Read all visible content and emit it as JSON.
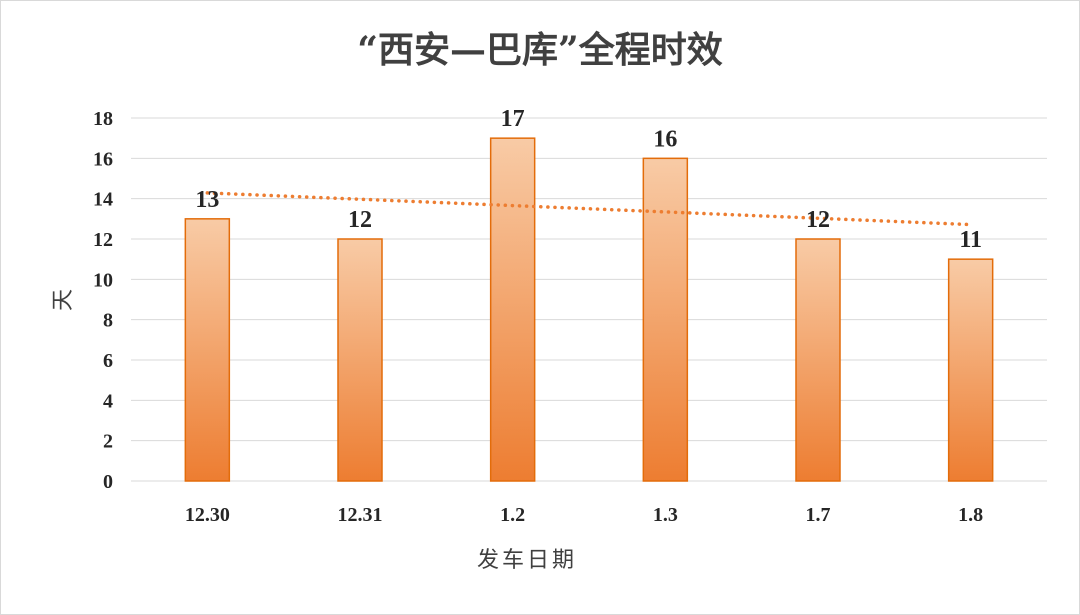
{
  "chart_data": {
    "type": "bar",
    "title": "“西安—巴库”全程时效",
    "categories": [
      "12.30",
      "12.31",
      "1.2",
      "1.3",
      "1.7",
      "1.8"
    ],
    "values": [
      13,
      12,
      17,
      16,
      12,
      11
    ],
    "xlabel": "发车日期",
    "ylabel": "天",
    "ylim": [
      0,
      18
    ],
    "yticks": [
      0,
      2,
      4,
      6,
      8,
      10,
      12,
      14,
      16,
      18
    ],
    "grid": true,
    "legend": "none",
    "trendline": {
      "type": "linear",
      "style": "dotted"
    },
    "colors": {
      "bar_top": "#f8cba6",
      "bar_bottom": "#ed7d31",
      "bar_border": "#e36c0a",
      "trendline": "#ed7d31",
      "grid": "#d9d9d9"
    }
  }
}
